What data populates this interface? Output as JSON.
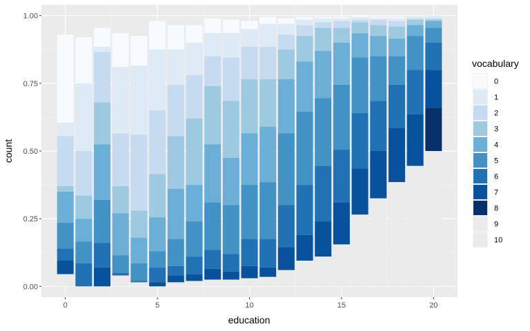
{
  "chart_data": {
    "type": "bar",
    "stacking": "fill",
    "xlabel": "education",
    "ylabel": "count",
    "x_ticks": [
      0,
      5,
      10,
      15,
      20
    ],
    "y_ticks": [
      "0.00",
      "0.25",
      "0.50",
      "0.75",
      "1.00"
    ],
    "xlim": [
      -1.3,
      21.3
    ],
    "ylim": [
      -0.04,
      1.04
    ],
    "grid": true,
    "legend_title": "vocabulary",
    "legend_position": "right",
    "vocabulary_levels": [
      "0",
      "1",
      "2",
      "3",
      "4",
      "5",
      "6",
      "7",
      "8",
      "9",
      "10"
    ],
    "colors": [
      "#f7fbff",
      "#deebf7",
      "#c6dbef",
      "#9ecae1",
      "#6baed6",
      "#4292c6",
      "#2171b5",
      "#08519c",
      "#08306b",
      "#ebebeb",
      "#ebebeb"
    ],
    "bars": [
      {
        "education": 0,
        "cumulative": [
          0.93,
          0.605,
          0.555,
          0.37,
          0.35,
          0.235,
          0.14,
          0.095,
          0.045,
          0.045,
          0.0
        ]
      },
      {
        "education": 1,
        "cumulative": [
          0.92,
          0.75,
          0.5,
          0.335,
          0.25,
          0.165,
          0.085,
          0.0,
          0.0,
          0.0,
          0.0
        ]
      },
      {
        "education": 2,
        "cumulative": [
          0.955,
          0.885,
          0.865,
          0.68,
          0.525,
          0.32,
          0.16,
          0.07,
          0.0,
          0.0,
          0.0
        ]
      },
      {
        "education": 3,
        "cumulative": [
          0.935,
          0.81,
          0.565,
          0.37,
          0.27,
          0.115,
          0.05,
          0.04,
          0.04,
          0.04,
          0.0
        ]
      },
      {
        "education": 4,
        "cumulative": [
          0.925,
          0.815,
          0.56,
          0.28,
          0.18,
          0.085,
          0.02,
          0.015,
          0.015,
          0.015,
          0.0
        ]
      },
      {
        "education": 5,
        "cumulative": [
          0.98,
          0.875,
          0.65,
          0.415,
          0.255,
          0.13,
          0.07,
          0.015,
          0.0,
          0.0,
          0.0
        ]
      },
      {
        "education": 6,
        "cumulative": [
          0.965,
          0.875,
          0.745,
          0.555,
          0.36,
          0.175,
          0.075,
          0.04,
          0.015,
          0.015,
          0.0
        ]
      },
      {
        "education": 7,
        "cumulative": [
          0.965,
          0.9,
          0.78,
          0.62,
          0.375,
          0.24,
          0.11,
          0.045,
          0.02,
          0.02,
          0.0
        ]
      },
      {
        "education": 8,
        "cumulative": [
          0.99,
          0.935,
          0.85,
          0.74,
          0.525,
          0.31,
          0.135,
          0.065,
          0.025,
          0.025,
          0.0
        ]
      },
      {
        "education": 9,
        "cumulative": [
          0.985,
          0.935,
          0.845,
          0.685,
          0.475,
          0.3,
          0.12,
          0.055,
          0.025,
          0.025,
          0.0
        ]
      },
      {
        "education": 10,
        "cumulative": [
          0.98,
          0.95,
          0.885,
          0.765,
          0.565,
          0.375,
          0.175,
          0.075,
          0.03,
          0.03,
          0.0
        ]
      },
      {
        "education": 11,
        "cumulative": [
          0.995,
          0.97,
          0.885,
          0.765,
          0.59,
          0.385,
          0.175,
          0.07,
          0.035,
          0.035,
          0.0
        ]
      },
      {
        "education": 12,
        "cumulative": [
          0.99,
          0.97,
          0.93,
          0.875,
          0.765,
          0.565,
          0.3,
          0.145,
          0.06,
          0.06,
          0.0
        ]
      },
      {
        "education": 13,
        "cumulative": [
          0.995,
          0.985,
          0.965,
          0.925,
          0.83,
          0.645,
          0.375,
          0.19,
          0.095,
          0.095,
          0.0
        ]
      },
      {
        "education": 14,
        "cumulative": [
          0.995,
          0.99,
          0.975,
          0.955,
          0.87,
          0.695,
          0.445,
          0.24,
          0.11,
          0.11,
          0.0
        ]
      },
      {
        "education": 15,
        "cumulative": [
          0.995,
          0.99,
          0.98,
          0.955,
          0.9,
          0.745,
          0.505,
          0.31,
          0.155,
          0.155,
          0.0
        ]
      },
      {
        "education": 16,
        "cumulative": [
          1.0,
          0.995,
          0.985,
          0.975,
          0.935,
          0.845,
          0.64,
          0.435,
          0.265,
          0.265,
          0.0
        ]
      },
      {
        "education": 17,
        "cumulative": [
          0.995,
          0.99,
          0.985,
          0.965,
          0.925,
          0.85,
          0.685,
          0.5,
          0.325,
          0.325,
          0.0
        ]
      },
      {
        "education": 18,
        "cumulative": [
          0.995,
          0.99,
          0.98,
          0.96,
          0.915,
          0.85,
          0.745,
          0.585,
          0.385,
          0.385,
          0.0
        ]
      },
      {
        "education": 19,
        "cumulative": [
          0.995,
          0.995,
          0.99,
          0.985,
          0.965,
          0.925,
          0.8,
          0.635,
          0.445,
          0.445,
          0.0
        ]
      },
      {
        "education": 20,
        "cumulative": [
          1.0,
          1.0,
          0.99,
          0.985,
          0.98,
          0.955,
          0.9,
          0.8,
          0.66,
          0.5,
          0.5
        ]
      }
    ]
  }
}
